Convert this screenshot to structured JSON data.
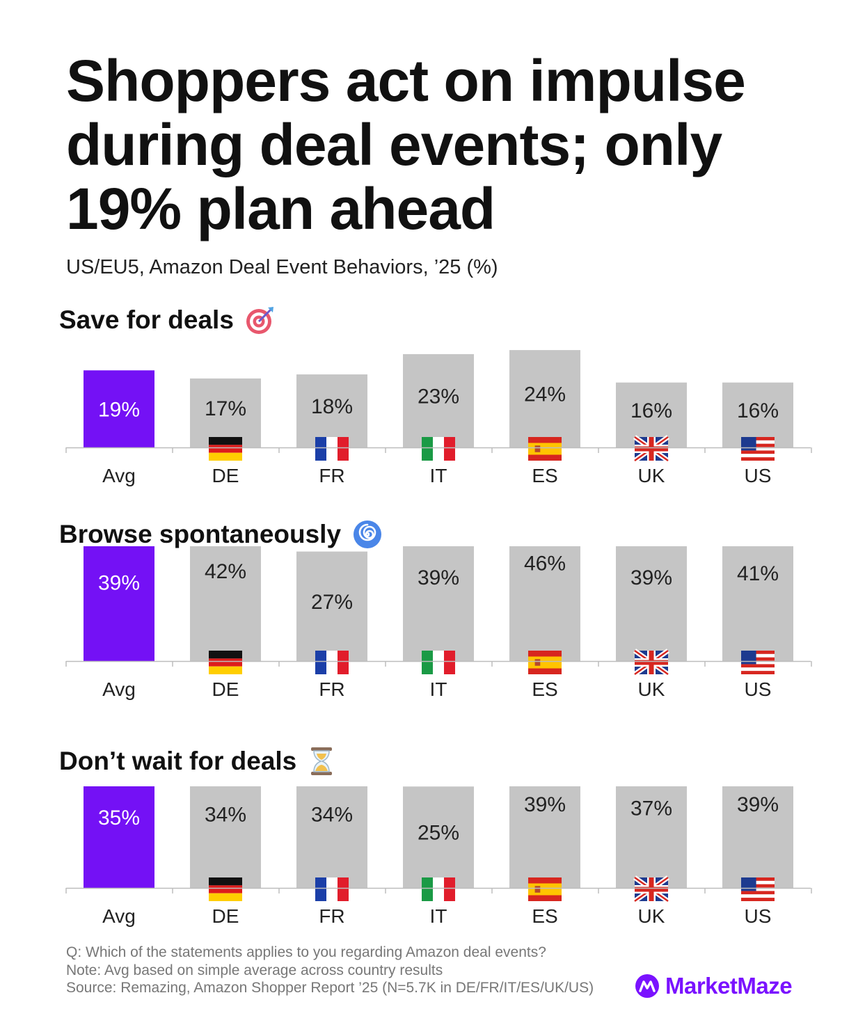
{
  "title": "Shoppers act on impulse during deal events; only 19% plan ahead",
  "subtitle": "US/EU5, Amazon Deal Event Behaviors, ’25 (%)",
  "colors": {
    "avg": "#7411f5",
    "country": "#c5c5c5",
    "brand": "#7a12ff"
  },
  "flags": [
    "germany-flag-icon",
    "france-flag-icon",
    "italy-flag-icon",
    "spain-flag-icon",
    "uk-flag-icon",
    "usa-flag-icon"
  ],
  "chart_data": [
    {
      "type": "bar",
      "title": "Save for deals",
      "icon": "target-dart-icon",
      "categories": [
        "Avg",
        "DE",
        "FR",
        "IT",
        "ES",
        "UK",
        "US"
      ],
      "values": [
        19,
        17,
        18,
        23,
        24,
        16,
        16
      ],
      "labels": [
        "19%",
        "17%",
        "18%",
        "23%",
        "24%",
        "16%",
        "16%"
      ],
      "ylim": [
        0,
        50
      ]
    },
    {
      "type": "bar",
      "title": "Browse spontaneously",
      "icon": "spiral-icon",
      "categories": [
        "Avg",
        "DE",
        "FR",
        "IT",
        "ES",
        "UK",
        "US"
      ],
      "values": [
        39,
        42,
        27,
        39,
        46,
        39,
        41
      ],
      "labels": [
        "39%",
        "42%",
        "27%",
        "39%",
        "46%",
        "39%",
        "41%"
      ],
      "ylim": [
        0,
        50
      ]
    },
    {
      "type": "bar",
      "title": "Don’t wait for deals",
      "icon": "hourglass-icon",
      "categories": [
        "Avg",
        "DE",
        "FR",
        "IT",
        "ES",
        "UK",
        "US"
      ],
      "values": [
        35,
        34,
        34,
        25,
        39,
        37,
        39
      ],
      "labels": [
        "35%",
        "34%",
        "34%",
        "25%",
        "39%",
        "37%",
        "39%"
      ],
      "ylim": [
        0,
        50
      ]
    }
  ],
  "footer": {
    "question": "Q: Which of the statements applies to you regarding Amazon deal events?",
    "note": "Note: Avg based on simple average across country results",
    "source": "Source: Remazing, Amazon Shopper Report ’25 (N=5.7K in DE/FR/IT/ES/UK/US)"
  },
  "brand": "MarketMaze"
}
